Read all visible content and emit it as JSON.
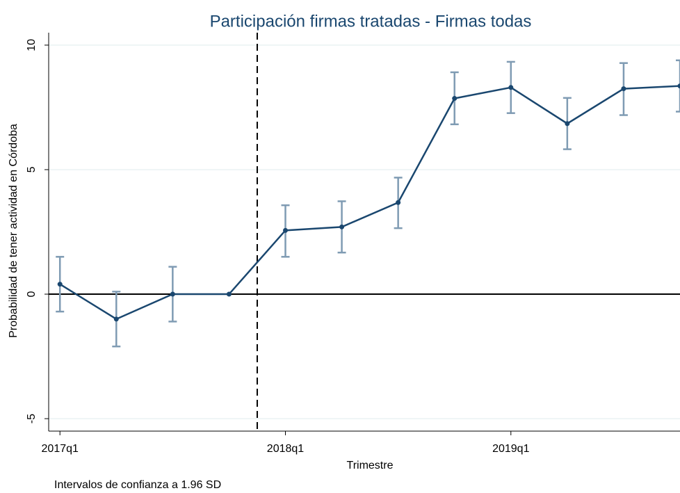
{
  "chart_data": {
    "type": "line",
    "title": "Participación firmas tratadas - Firmas todas",
    "x_label": "Trimestre",
    "y_label": "Probabilidad de tener actividad en Córdoba",
    "note": "Intervalos de confianza a 1.96 SD",
    "x": [
      0,
      1,
      2,
      3,
      4,
      5,
      6,
      7,
      8,
      9,
      10,
      11
    ],
    "xlim": [
      -0.2,
      11
    ],
    "xticks": [
      {
        "value": 0,
        "label": "2017q1"
      },
      {
        "value": 4,
        "label": "2018q1"
      },
      {
        "value": 8,
        "label": "2019q1"
      }
    ],
    "ylim": [
      -5.5,
      10.5
    ],
    "yticks": [
      -5,
      0,
      5,
      10
    ],
    "grid": true,
    "vline": 3.5,
    "hline": 0,
    "series": [
      {
        "color": "#1a476f",
        "ci_color": "#7f9bb3",
        "values": [
          0.4,
          -1.0,
          0.0,
          0.0,
          2.56,
          2.7,
          3.68,
          7.86,
          8.3,
          6.85,
          8.25,
          8.36
        ],
        "upper": [
          1.5,
          0.1,
          1.1,
          null,
          3.57,
          3.73,
          4.68,
          8.91,
          9.33,
          7.88,
          9.28,
          9.39
        ],
        "lower": [
          -0.7,
          -2.1,
          -1.1,
          null,
          1.5,
          1.67,
          2.65,
          6.82,
          7.27,
          5.82,
          7.19,
          7.33
        ]
      }
    ]
  }
}
